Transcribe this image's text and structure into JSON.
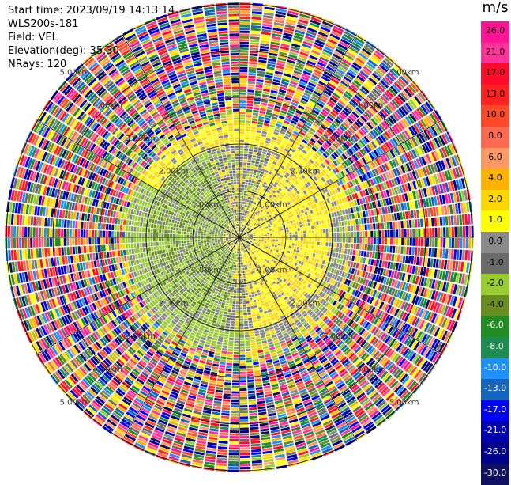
{
  "header": {
    "start_time": "Start time: 2023/09/19 14:13:14",
    "station": "WLS200s-181",
    "field": "Field: VEL",
    "elevation": "Elevation(deg): 35.30",
    "nrays": "NRays: 120"
  },
  "chart_data": {
    "type": "ppi_polar",
    "title": "",
    "field": "VEL",
    "units": "m/s",
    "n_rays": 120,
    "range_rings_km": [
      1.0,
      2.0,
      3.0,
      4.0,
      5.0
    ],
    "ring_labels": [
      "1.00km",
      "2.00km",
      "3.00km",
      "4.00km",
      "5.00km"
    ],
    "colorbar": {
      "label": "m/s",
      "ticks": [
        "26.0",
        "21.0",
        "17.0",
        "13.0",
        "10.0",
        "8.0",
        "6.0",
        "4.0",
        "2.0",
        "1.0",
        "0.0",
        "-1.0",
        "-2.0",
        "-4.0",
        "-6.0",
        "-8.0",
        "-10.0",
        "-13.0",
        "-17.0",
        "-21.0",
        "-26.0",
        "-30.0"
      ],
      "colors": [
        "#ff1493",
        "#ff3399",
        "#ff0a2a",
        "#ff2020",
        "#ff4a2a",
        "#ff6a50",
        "#ff9966",
        "#ffb300",
        "#ffd700",
        "#ffff00",
        "#8a8a8a",
        "#6b6b6b",
        "#9acd32",
        "#6b8e23",
        "#228b22",
        "#1e8c50",
        "#1e90ff",
        "#1565c0",
        "#0000ff",
        "#0000b0",
        "#00008b",
        "#101060"
      ]
    },
    "grid": true
  }
}
